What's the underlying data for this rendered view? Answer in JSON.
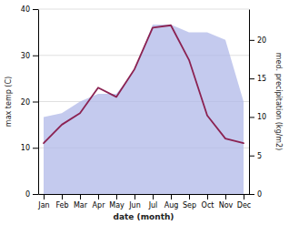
{
  "chart_data": {
    "type": "line",
    "xlabel": "date (month)",
    "ylabel": "max temp (C)",
    "y2label": "med. precipitation (kg/m2)",
    "categories": [
      "Jan",
      "Feb",
      "Mar",
      "Apr",
      "May",
      "Jun",
      "Jul",
      "Aug",
      "Sep",
      "Oct",
      "Nov",
      "Dec"
    ],
    "series": [
      {
        "type": "area",
        "axis": "y2",
        "color": "#b0b8e8",
        "values": [
          10,
          10.5,
          12,
          13,
          13,
          16,
          22,
          22,
          21,
          21,
          20,
          12
        ]
      },
      {
        "type": "line",
        "color": "#8b2252",
        "values": [
          11,
          15,
          17.5,
          23,
          21,
          27,
          36,
          36.5,
          29,
          17,
          12,
          11
        ]
      }
    ],
    "ylim": [
      0,
      40
    ],
    "yticks": [
      0,
      10,
      20,
      30,
      40
    ],
    "y2lim": [
      0,
      24
    ],
    "y2ticks": [
      0,
      5,
      10,
      15,
      20
    ],
    "grid": true
  }
}
